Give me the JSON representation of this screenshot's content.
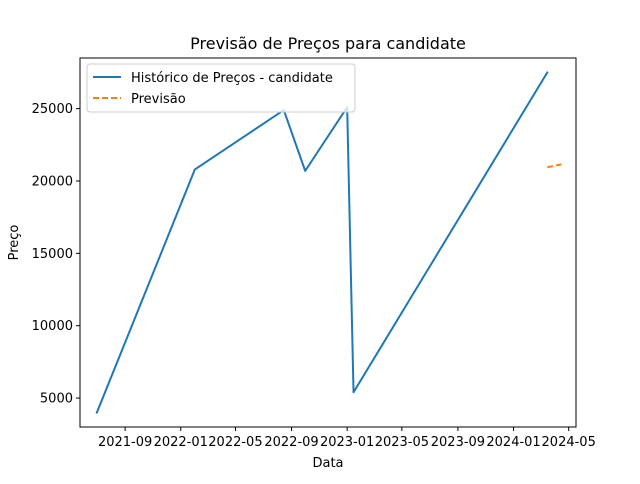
{
  "chart_data": {
    "type": "line",
    "title": "Previsão de Preços para candidate",
    "xlabel": "Data",
    "ylabel": "Preço",
    "x_axis_type": "date",
    "xlim": [
      "2021-05-25",
      "2024-05-17"
    ],
    "ylim": [
      3000,
      28500
    ],
    "x_ticks": [
      "2021-09",
      "2022-01",
      "2022-05",
      "2022-09",
      "2023-01",
      "2023-05",
      "2023-09",
      "2024-01",
      "2024-05"
    ],
    "y_ticks": [
      5000,
      10000,
      15000,
      20000,
      25000
    ],
    "grid": false,
    "legend_position": "top-left",
    "series": [
      {
        "name": "Histórico de Preços - candidate",
        "color": "#1f77b4",
        "style": "solid",
        "points": [
          {
            "x": "2021-07-01",
            "y": 4000
          },
          {
            "x": "2022-02-01",
            "y": 20800
          },
          {
            "x": "2022-08-15",
            "y": 24900
          },
          {
            "x": "2022-10-01",
            "y": 20700
          },
          {
            "x": "2023-01-01",
            "y": 25100
          },
          {
            "x": "2023-01-15",
            "y": 5400
          },
          {
            "x": "2024-03-15",
            "y": 27500
          }
        ]
      },
      {
        "name": "Previsão",
        "color": "#ff7f0e",
        "style": "dashed",
        "points": [
          {
            "x": "2024-03-15",
            "y": 20950
          },
          {
            "x": "2024-04-15",
            "y": 21150
          }
        ]
      }
    ]
  }
}
